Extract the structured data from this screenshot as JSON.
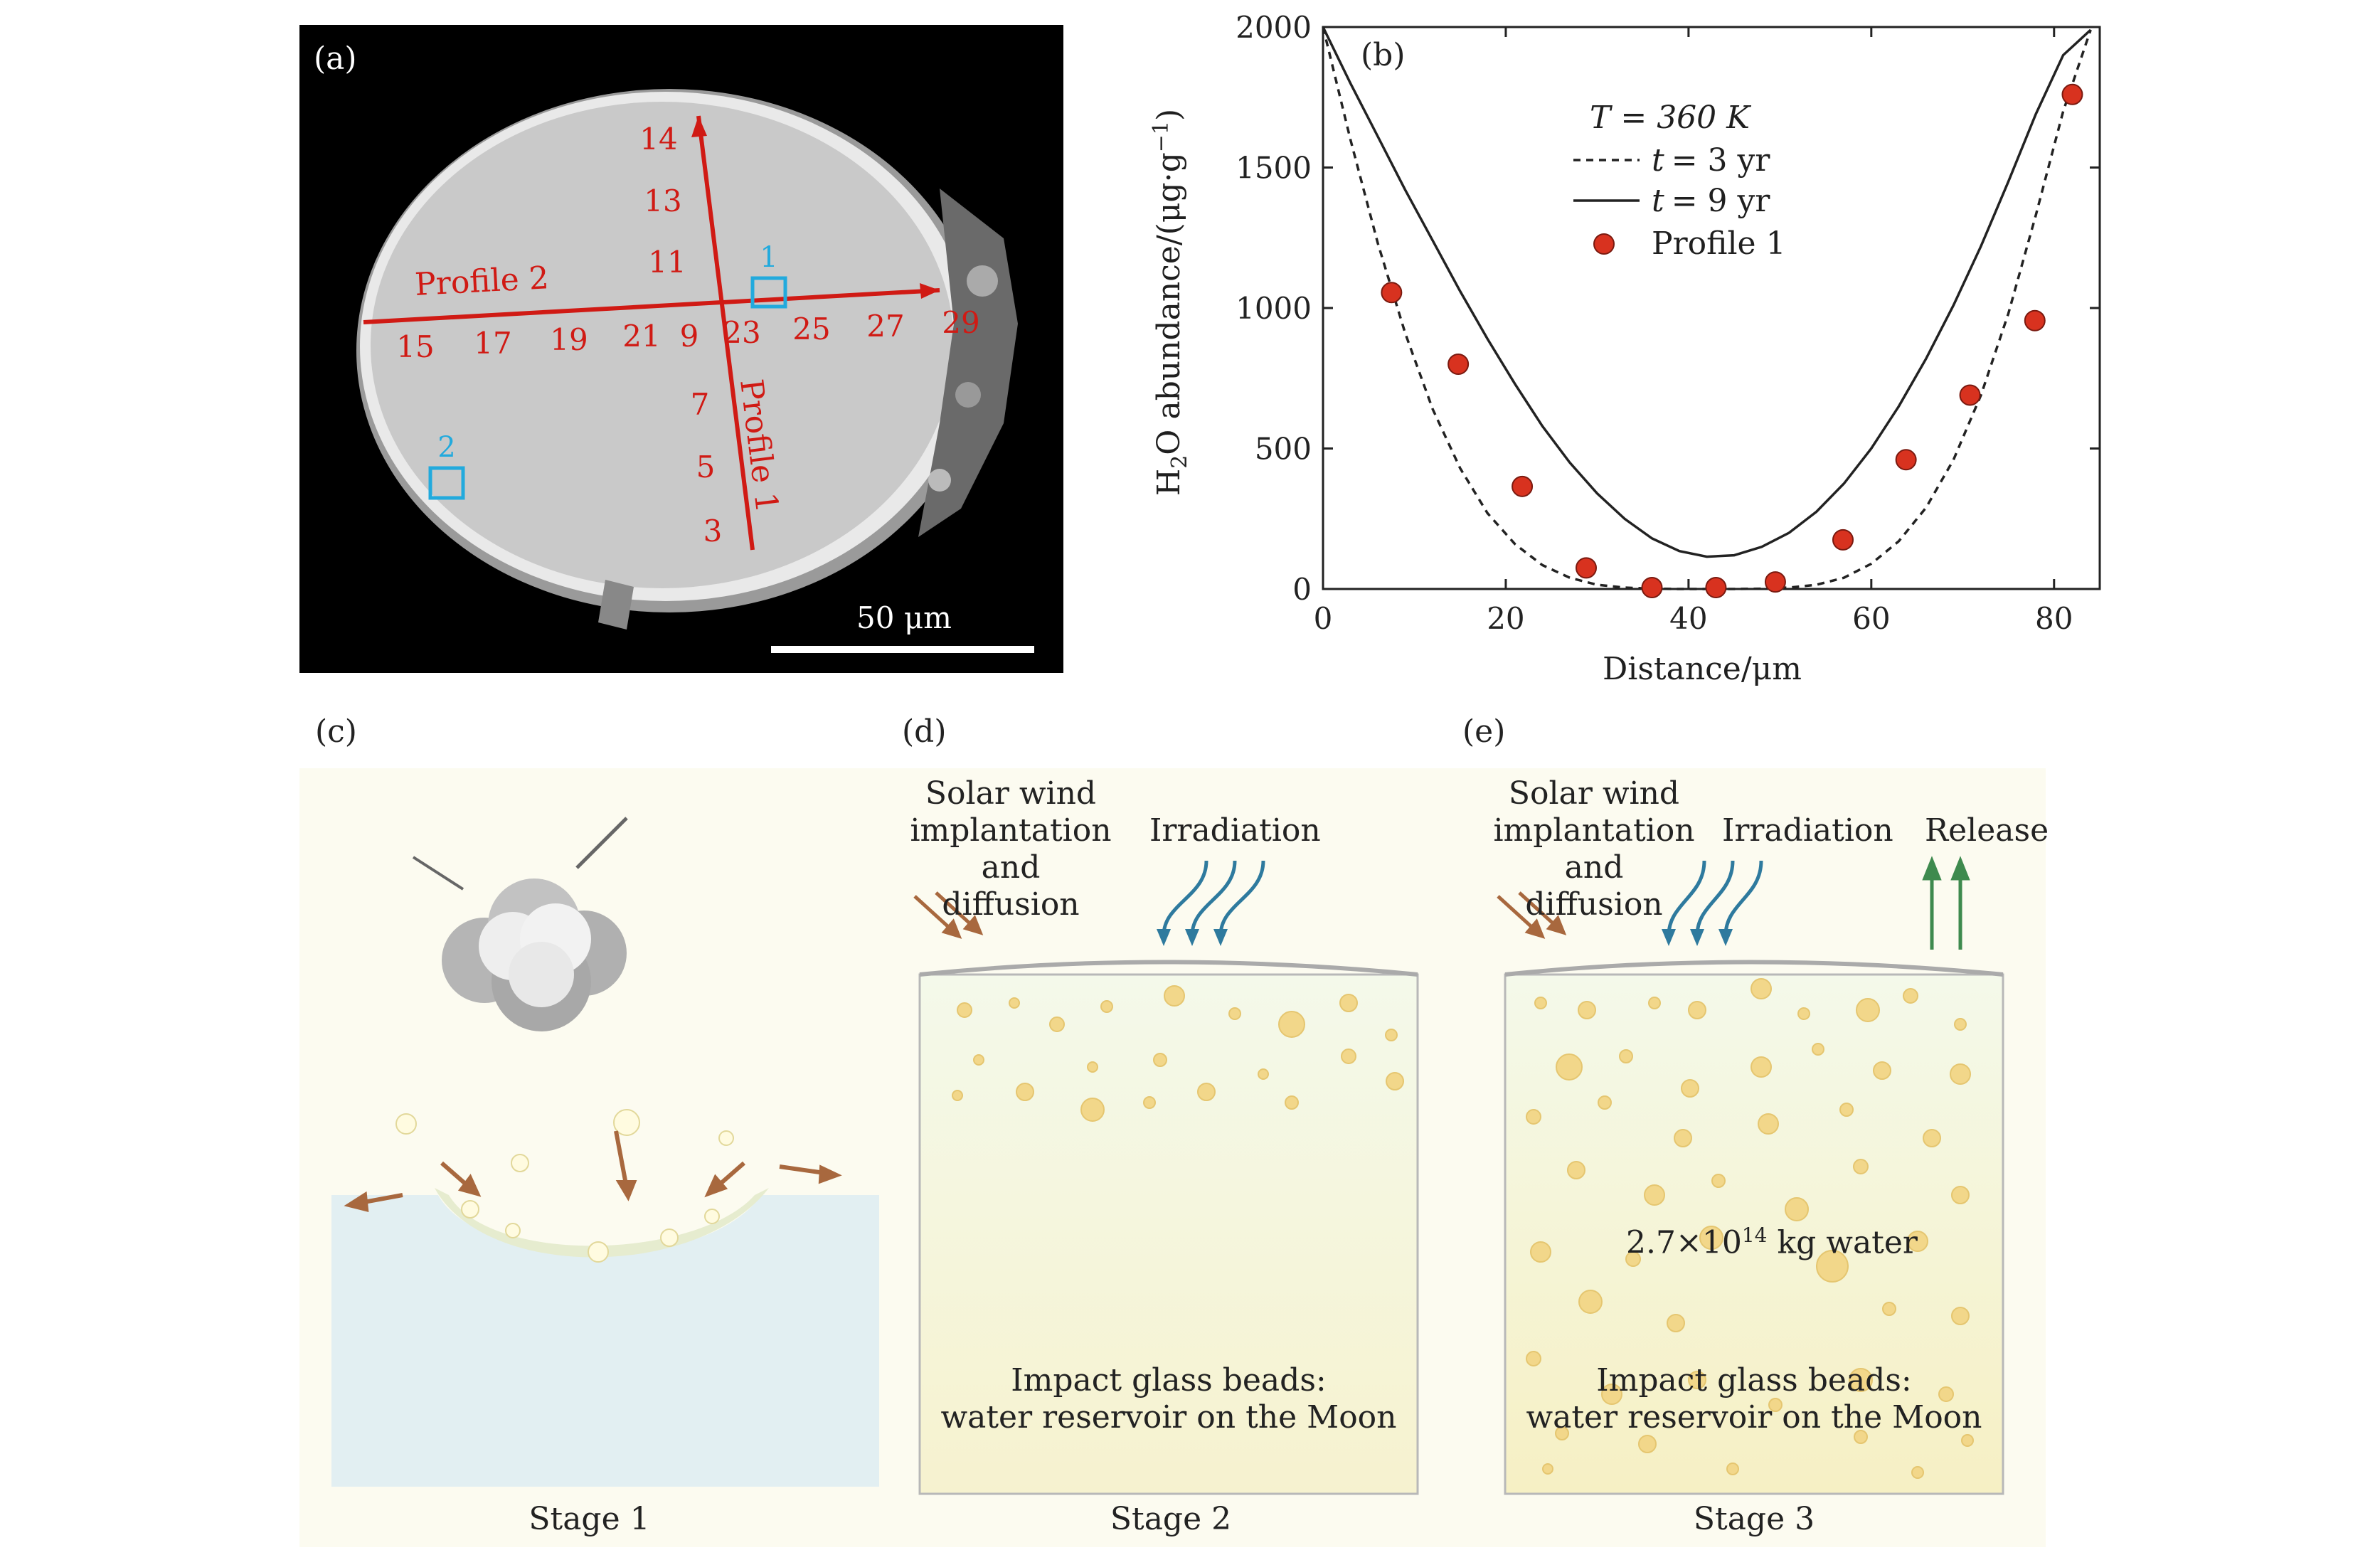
{
  "panels": {
    "a": {
      "label": "(a)",
      "scale_bar": "50 μm",
      "profile1_label": "Profile 1",
      "profile2_label": "Profile 2",
      "box1_label": "1",
      "box2_label": "2",
      "profile1_numbers": [
        "14",
        "13",
        "11",
        "9",
        "7",
        "5",
        "3"
      ],
      "profile2_numbers": [
        "15",
        "17",
        "19",
        "21",
        "23",
        "25",
        "27",
        "29"
      ],
      "colors": {
        "profile": "#d01a14",
        "box": "#22aadd",
        "background": "#000000",
        "bead": "#c8c8c8"
      }
    },
    "b": {
      "label": "(b)",
      "legend_title": "T = 360 K",
      "legend_t_symbol": "t",
      "legend_t3_value": "= 3  yr",
      "legend_t9_value": "= 9  yr",
      "legend_points": "Profile 1",
      "colors": {
        "points": "#d8321f",
        "curve": "#222222"
      }
    },
    "c": {
      "label": "(c)",
      "stage": "Stage 1"
    },
    "d": {
      "label": "(d)",
      "stage": "Stage 2",
      "solar_wind": [
        "Solar wind",
        "implantation",
        "and diffusion"
      ],
      "irradiation": "Irradiation",
      "bottom_text": [
        "Impact glass beads:",
        "water reservoir on the Moon"
      ]
    },
    "e": {
      "label": "(e)",
      "stage": "Stage 3",
      "solar_wind": [
        "Solar wind",
        "implantation",
        "and diffusion"
      ],
      "irradiation": "Irradiation",
      "release": "Release",
      "water_amount": "2.7×10",
      "water_exp": "14",
      "water_unit": " kg water",
      "bottom_text": [
        "Impact glass beads:",
        "water reservoir on the Moon"
      ]
    }
  },
  "chart_data": {
    "type": "scatter",
    "title": "",
    "xlabel": "Distance/μm",
    "ylabel": "H2O abundance/(μg·g−1)",
    "xlim": [
      0,
      85
    ],
    "ylim": [
      0,
      2000
    ],
    "xticks": [
      0,
      20,
      40,
      60,
      80
    ],
    "yticks": [
      0,
      500,
      1000,
      1500,
      2000
    ],
    "legend": "top-center",
    "grid": false,
    "series": [
      {
        "name": "Profile 1",
        "type": "scatter",
        "x": [
          7.5,
          14.8,
          21.8,
          28.8,
          36,
          43,
          49.5,
          56.9,
          63.8,
          70.8,
          77.9,
          82
        ],
        "y": [
          1055,
          800,
          365,
          75,
          5,
          5,
          25,
          175,
          460,
          690,
          955,
          1760
        ]
      },
      {
        "name": "t = 3 yr",
        "type": "line",
        "style": "dashed",
        "x": [
          0,
          3,
          6,
          9,
          12,
          15,
          18,
          21,
          24,
          27,
          30,
          33,
          36,
          39,
          42,
          45,
          48,
          51,
          54,
          57,
          60,
          63,
          66,
          69,
          72,
          75,
          78,
          81,
          84
        ],
        "y": [
          2000,
          1600,
          1230,
          910,
          640,
          430,
          270,
          160,
          85,
          40,
          15,
          5,
          1,
          0,
          0,
          0,
          1,
          5,
          15,
          40,
          90,
          170,
          290,
          460,
          690,
          980,
          1330,
          1700,
          1990
        ]
      },
      {
        "name": "t = 9 yr",
        "type": "line",
        "style": "solid",
        "x": [
          0,
          3,
          6,
          9,
          12,
          15,
          18,
          21,
          24,
          27,
          30,
          33,
          36,
          39,
          42,
          45,
          48,
          51,
          54,
          57,
          60,
          63,
          66,
          69,
          72,
          75,
          78,
          81,
          84
        ],
        "y": [
          2000,
          1800,
          1610,
          1420,
          1240,
          1060,
          890,
          730,
          580,
          450,
          340,
          250,
          180,
          135,
          115,
          120,
          150,
          200,
          275,
          375,
          500,
          650,
          820,
          1010,
          1220,
          1450,
          1690,
          1900,
          1990
        ]
      }
    ]
  }
}
